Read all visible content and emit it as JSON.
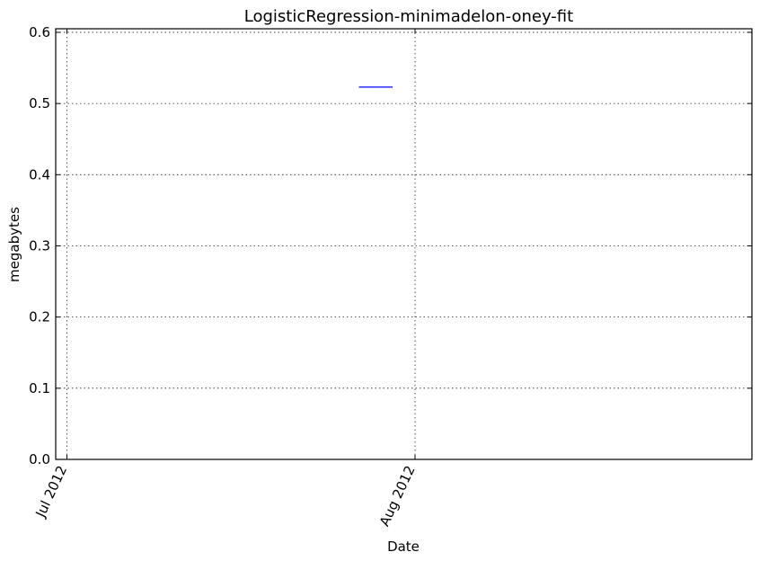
{
  "chart_data": {
    "type": "line",
    "title": "LogisticRegression-minimadelon-oney-fit",
    "xlabel": "Date",
    "ylabel": "megabytes",
    "x_axis_type": "date",
    "xlim": [
      "2012-06-30",
      "2012-08-31"
    ],
    "ylim": [
      0.0,
      0.605
    ],
    "x_ticks": [
      {
        "value": "2012-07-01",
        "label": "Jul 2012"
      },
      {
        "value": "2012-08-01",
        "label": "Aug 2012"
      }
    ],
    "y_ticks": [
      {
        "value": 0.0,
        "label": "0.0"
      },
      {
        "value": 0.1,
        "label": "0.1"
      },
      {
        "value": 0.2,
        "label": "0.2"
      },
      {
        "value": 0.3,
        "label": "0.3"
      },
      {
        "value": 0.4,
        "label": "0.4"
      },
      {
        "value": 0.5,
        "label": "0.5"
      },
      {
        "value": 0.6,
        "label": "0.6"
      }
    ],
    "grid": true,
    "series": [
      {
        "color": "#0000ff",
        "points": [
          {
            "x": "2012-07-27",
            "y": 0.523
          },
          {
            "x": "2012-07-30",
            "y": 0.523
          }
        ]
      }
    ]
  }
}
